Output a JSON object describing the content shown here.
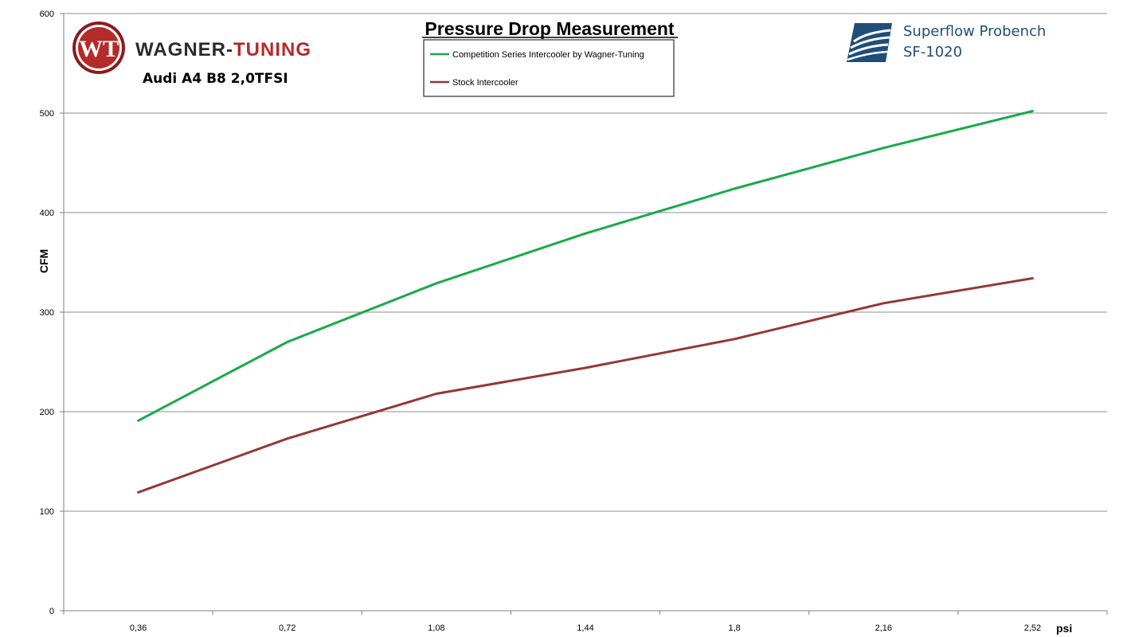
{
  "chart_data": {
    "type": "line",
    "title": "Pressure Drop Measurement",
    "xlabel": "psi",
    "ylabel": "CFM",
    "x": [
      "0,36",
      "0,72",
      "1,08",
      "1,44",
      "1,8",
      "2,16",
      "2,52"
    ],
    "yticks": [
      "0",
      "100",
      "200",
      "300",
      "400",
      "500",
      "600"
    ],
    "ylim": [
      0,
      600
    ],
    "grid": true,
    "legend_position": "top-center",
    "series": [
      {
        "name": "Competition Series Intercooler by Wagner-Tuning",
        "color": "#1aaa4b",
        "values": [
          191,
          270,
          329,
          379,
          424,
          465,
          502
        ]
      },
      {
        "name": "Stock Intercooler",
        "color": "#953735",
        "values": [
          119,
          173,
          218,
          244,
          273,
          309,
          334
        ]
      }
    ]
  },
  "branding": {
    "logo_monogram": "WT",
    "brand_left": "WAGNER-",
    "brand_right": "TUNING",
    "vehicle": "Audi A4 B8 2,0TFSI",
    "bench_line1": "Superflow Probench",
    "bench_line2": "SF-1020",
    "bench_icon": "superflow-logo-icon",
    "colors": {
      "wagner_red": "#b52a2a",
      "superflow_blue": "#1f4e79"
    }
  }
}
